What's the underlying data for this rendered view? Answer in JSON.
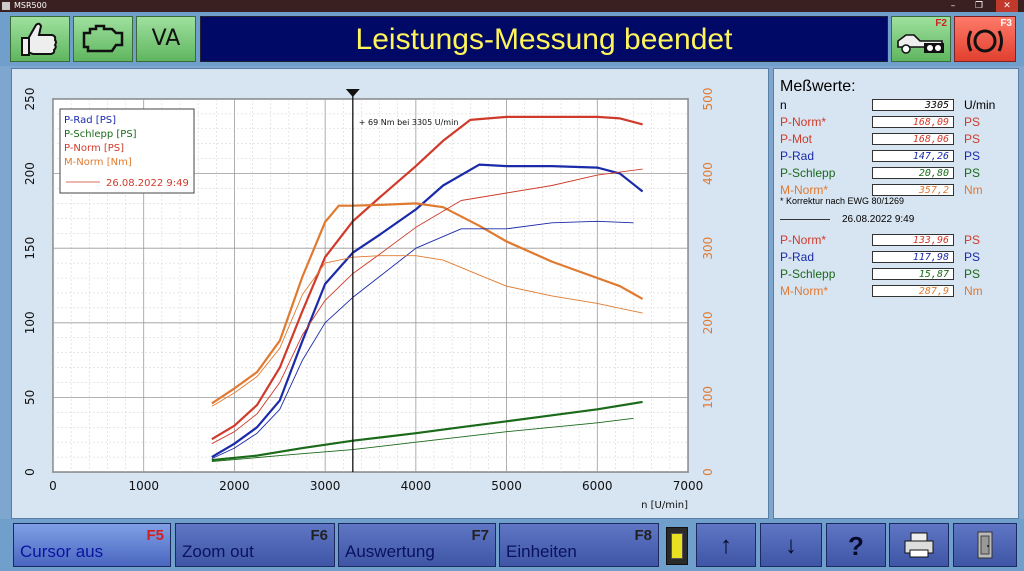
{
  "window": {
    "title": "MSR500",
    "minimize": "–",
    "maximize": "❐",
    "close": "✕"
  },
  "toolbar": {
    "title": "Leistungs-Messung beendet",
    "va_label": "VA",
    "f2": "F2",
    "f3": "F3"
  },
  "chart_data": {
    "type": "line",
    "x_axis": {
      "label": "n [U/min]",
      "min": 0,
      "max": 7000,
      "ticks": [
        0,
        1000,
        2000,
        3000,
        4000,
        5000,
        6000,
        7000
      ]
    },
    "y_left": {
      "min": 0,
      "max": 250,
      "ticks": [
        0,
        50,
        100,
        150,
        200,
        250
      ]
    },
    "y_right": {
      "min": 0,
      "max": 500,
      "ticks": [
        0,
        100,
        200,
        300,
        400,
        500
      ]
    },
    "cursor": {
      "x": 3305,
      "annotation": "+ 69 Nm bei 3305 U/min"
    },
    "legend": {
      "items": [
        {
          "label": "P-Rad [PS]",
          "color": "#1a2aa8"
        },
        {
          "label": "P-Schlepp [PS]",
          "color": "#1a6a1a"
        },
        {
          "label": "P-Norm [PS]",
          "color": "#d03a2a"
        },
        {
          "label": "M-Norm [Nm]",
          "color": "#e07a30"
        }
      ],
      "date_label": "26.08.2022 9:49",
      "date_color": "#d03a2a"
    },
    "series": [
      {
        "color": "#d03a2a",
        "axis": "left",
        "style": "thick",
        "points": [
          [
            1750,
            22
          ],
          [
            2000,
            31
          ],
          [
            2250,
            45
          ],
          [
            2500,
            70
          ],
          [
            2750,
            108
          ],
          [
            3000,
            144
          ],
          [
            3305,
            168
          ],
          [
            3600,
            184
          ],
          [
            4000,
            205
          ],
          [
            4300,
            222
          ],
          [
            4600,
            236
          ],
          [
            5000,
            238
          ],
          [
            5500,
            238
          ],
          [
            6000,
            238
          ],
          [
            6250,
            237
          ],
          [
            6500,
            233
          ]
        ]
      },
      {
        "color": "#1a2aa8",
        "axis": "left",
        "style": "thick",
        "points": [
          [
            1750,
            10
          ],
          [
            2000,
            19
          ],
          [
            2250,
            30
          ],
          [
            2500,
            48
          ],
          [
            2750,
            88
          ],
          [
            3000,
            126
          ],
          [
            3305,
            147
          ],
          [
            3600,
            159
          ],
          [
            4000,
            176
          ],
          [
            4300,
            192
          ],
          [
            4700,
            206
          ],
          [
            5000,
            205
          ],
          [
            5500,
            205
          ],
          [
            6000,
            204
          ],
          [
            6250,
            200
          ],
          [
            6500,
            188
          ]
        ]
      },
      {
        "color": "#1a6a1a",
        "axis": "left",
        "style": "thick",
        "points": [
          [
            1750,
            8
          ],
          [
            2250,
            11
          ],
          [
            2750,
            16
          ],
          [
            3305,
            21
          ],
          [
            4000,
            26
          ],
          [
            4500,
            30
          ],
          [
            5000,
            34
          ],
          [
            5500,
            38
          ],
          [
            6000,
            42
          ],
          [
            6500,
            47
          ]
        ]
      },
      {
        "color": "#e07a30",
        "axis": "right",
        "style": "thick",
        "points": [
          [
            1750,
            92
          ],
          [
            2000,
            112
          ],
          [
            2250,
            134
          ],
          [
            2500,
            176
          ],
          [
            2750,
            262
          ],
          [
            3000,
            335
          ],
          [
            3150,
            357
          ],
          [
            3305,
            357
          ],
          [
            3600,
            358
          ],
          [
            4000,
            360
          ],
          [
            4300,
            355
          ],
          [
            4700,
            330
          ],
          [
            5000,
            309
          ],
          [
            5500,
            282
          ],
          [
            6000,
            260
          ],
          [
            6250,
            249
          ],
          [
            6500,
            232
          ]
        ]
      },
      {
        "color": "#d03a2a",
        "axis": "left",
        "style": "thin",
        "points": [
          [
            1750,
            19
          ],
          [
            2000,
            27
          ],
          [
            2250,
            39
          ],
          [
            2500,
            60
          ],
          [
            2750,
            92
          ],
          [
            3000,
            115
          ],
          [
            3305,
            133
          ],
          [
            3600,
            146
          ],
          [
            4000,
            164
          ],
          [
            4500,
            182
          ],
          [
            5000,
            187
          ],
          [
            5500,
            192
          ],
          [
            6000,
            199
          ],
          [
            6500,
            203
          ]
        ]
      },
      {
        "color": "#1a2aa8",
        "axis": "left",
        "style": "thin",
        "points": [
          [
            1750,
            9
          ],
          [
            2000,
            16
          ],
          [
            2250,
            26
          ],
          [
            2500,
            42
          ],
          [
            2750,
            75
          ],
          [
            3000,
            100
          ],
          [
            3305,
            117
          ],
          [
            3600,
            131
          ],
          [
            4000,
            150
          ],
          [
            4500,
            163
          ],
          [
            5000,
            163
          ],
          [
            5500,
            167
          ],
          [
            6000,
            168
          ],
          [
            6400,
            167
          ]
        ]
      },
      {
        "color": "#1a6a1a",
        "axis": "left",
        "style": "thin",
        "points": [
          [
            1750,
            7
          ],
          [
            2500,
            11
          ],
          [
            3305,
            15
          ],
          [
            4000,
            20
          ],
          [
            5000,
            27
          ],
          [
            6000,
            33
          ],
          [
            6400,
            36
          ]
        ]
      },
      {
        "color": "#e07a30",
        "axis": "right",
        "style": "thin",
        "points": [
          [
            1750,
            88
          ],
          [
            2000,
            106
          ],
          [
            2250,
            128
          ],
          [
            2500,
            166
          ],
          [
            2750,
            238
          ],
          [
            3000,
            280
          ],
          [
            3305,
            288
          ],
          [
            3600,
            290
          ],
          [
            4000,
            290
          ],
          [
            4300,
            284
          ],
          [
            4700,
            264
          ],
          [
            5000,
            249
          ],
          [
            5500,
            236
          ],
          [
            6000,
            226
          ],
          [
            6500,
            213
          ]
        ]
      }
    ]
  },
  "measurements": {
    "title": "Meßwerte:",
    "rows": [
      {
        "label": "n",
        "value": "3305",
        "unit": "U/min",
        "color": "#000000"
      },
      {
        "label": "P-Norm*",
        "value": "168,09",
        "unit": "PS",
        "color": "#d03a2a"
      },
      {
        "label": "P-Mot",
        "value": "168,06",
        "unit": "PS",
        "color": "#d03a2a"
      },
      {
        "label": "P-Rad",
        "value": "147,26",
        "unit": "PS",
        "color": "#1a2aa8"
      },
      {
        "label": "P-Schlepp",
        "value": "20,80",
        "unit": "PS",
        "color": "#1a6a1a"
      },
      {
        "label": "M-Norm*",
        "value": "357,2",
        "unit": "Nm",
        "color": "#e07a30"
      }
    ],
    "note": "* Korrektur nach EWG 80/1269",
    "compare_date": "26.08.2022 9:49",
    "compare_rows": [
      {
        "label": "P-Norm*",
        "value": "133,96",
        "unit": "PS",
        "color": "#d03a2a"
      },
      {
        "label": "P-Rad",
        "value": "117,98",
        "unit": "PS",
        "color": "#1a2aa8"
      },
      {
        "label": "P-Schlepp",
        "value": "15,87",
        "unit": "PS",
        "color": "#1a6a1a"
      },
      {
        "label": "M-Norm*",
        "value": "287,9",
        "unit": "Nm",
        "color": "#e07a30"
      }
    ]
  },
  "bottom": {
    "cursor": {
      "label": "Cursor aus",
      "key": "F5"
    },
    "zoom": {
      "label": "Zoom out",
      "key": "F6"
    },
    "auswertung": {
      "label": "Auswertung",
      "key": "F7"
    },
    "einheiten": {
      "label": "Einheiten",
      "key": "F8"
    },
    "up": "↑",
    "down": "↓",
    "help": "?"
  }
}
